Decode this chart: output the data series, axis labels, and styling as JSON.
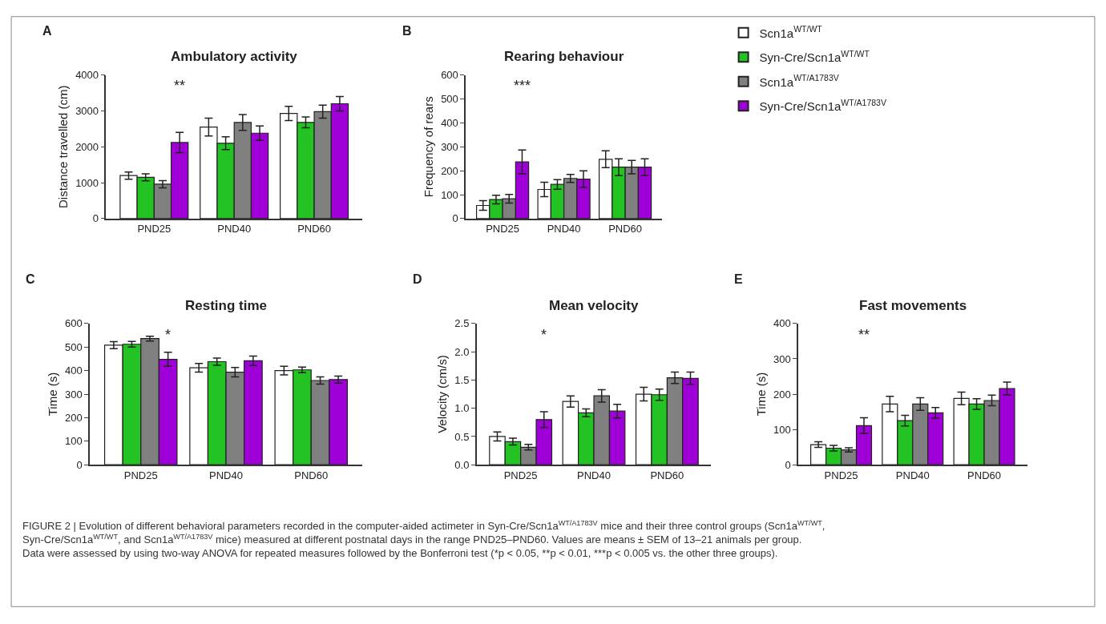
{
  "chart_data": [
    {
      "type": "bar",
      "title": "Ambulatory activity",
      "ylabel": "Distance travelled (cm)",
      "categories": [
        "PND25",
        "PND40",
        "PND60"
      ],
      "ylim": [
        0,
        4000
      ],
      "yticks": [
        0,
        1000,
        2000,
        3000,
        4000
      ],
      "legend": false,
      "series": [
        {
          "color": "#ffffff",
          "values": [
            1200,
            2550,
            2930
          ],
          "errors": [
            100,
            250,
            200
          ]
        },
        {
          "color": "#22c322",
          "values": [
            1150,
            2100,
            2680
          ],
          "errors": [
            100,
            180,
            150
          ]
        },
        {
          "color": "#808080",
          "values": [
            960,
            2680,
            2980
          ],
          "errors": [
            100,
            220,
            180
          ]
        },
        {
          "color": "#a000d8",
          "values": [
            2120,
            2380,
            3200
          ],
          "errors": [
            280,
            200,
            200
          ]
        }
      ],
      "annotations": [
        "A",
        "**"
      ]
    },
    {
      "type": "bar",
      "title": "Rearing behaviour",
      "ylabel": "Frequency of rears",
      "categories": [
        "PND25",
        "PND40",
        "PND60"
      ],
      "ylim": [
        0,
        600
      ],
      "yticks": [
        0,
        100,
        200,
        300,
        400,
        500,
        600
      ],
      "legend": "right",
      "series": [
        {
          "name": "Scn1a$^{WT/WT}$",
          "color": "#ffffff",
          "values": [
            55,
            122,
            248
          ],
          "errors": [
            20,
            30,
            35
          ]
        },
        {
          "name": "Syn-Cre/Scn1a$^{WT/WT}$",
          "color": "#22c322",
          "values": [
            80,
            143,
            215
          ],
          "errors": [
            18,
            20,
            35
          ]
        },
        {
          "name": "Scn1a$^{WT/A1783V}$",
          "color": "#808080",
          "values": [
            83,
            168,
            215
          ],
          "errors": [
            18,
            17,
            28
          ]
        },
        {
          "name": "Syn-Cre/Scn1a$^{WT/A1783V}$",
          "color": "#a000d8",
          "values": [
            237,
            165,
            215
          ],
          "errors": [
            50,
            35,
            35
          ]
        }
      ],
      "annotations": [
        "B",
        "***"
      ]
    },
    {
      "type": "bar",
      "title": "Resting time",
      "ylabel": "Time (s)",
      "categories": [
        "PND25",
        "PND40",
        "PND60"
      ],
      "ylim": [
        0,
        600
      ],
      "yticks": [
        0,
        100,
        200,
        300,
        400,
        500,
        600
      ],
      "legend": false,
      "series": [
        {
          "color": "#ffffff",
          "values": [
            508,
            412,
            400
          ],
          "errors": [
            15,
            18,
            18
          ]
        },
        {
          "color": "#22c322",
          "values": [
            512,
            438,
            403
          ],
          "errors": [
            12,
            15,
            12
          ]
        },
        {
          "color": "#808080",
          "values": [
            536,
            393,
            358
          ],
          "errors": [
            10,
            20,
            15
          ]
        },
        {
          "color": "#a000d8",
          "values": [
            448,
            442,
            362
          ],
          "errors": [
            30,
            20,
            15
          ]
        }
      ],
      "annotations": [
        "C",
        "*"
      ]
    },
    {
      "type": "bar",
      "title": "Mean velocity",
      "ylabel": "Velocity (cm/s)",
      "categories": [
        "PND25",
        "PND40",
        "PND60"
      ],
      "ylim": [
        0,
        2.5
      ],
      "yticks": [
        {
          "value": 0,
          "label": "0.0"
        },
        0.5,
        {
          "value": 1,
          "label": "1.0"
        },
        1.5,
        {
          "value": 2,
          "label": "2.0"
        },
        2.5
      ],
      "legend": false,
      "series": [
        {
          "color": "#ffffff",
          "values": [
            0.5,
            1.12,
            1.25
          ],
          "errors": [
            0.08,
            0.1,
            0.12
          ]
        },
        {
          "color": "#22c322",
          "values": [
            0.41,
            0.92,
            1.24
          ],
          "errors": [
            0.06,
            0.07,
            0.1
          ]
        },
        {
          "color": "#808080",
          "values": [
            0.31,
            1.22,
            1.54
          ],
          "errors": [
            0.05,
            0.11,
            0.1
          ]
        },
        {
          "color": "#a000d8",
          "values": [
            0.8,
            0.95,
            1.53
          ],
          "errors": [
            0.14,
            0.12,
            0.11
          ]
        }
      ],
      "annotations": [
        "D",
        "*"
      ]
    },
    {
      "type": "bar",
      "title": "Fast movements",
      "ylabel": "Time (s)",
      "categories": [
        "PND25",
        "PND40",
        "PND60"
      ],
      "ylim": [
        0,
        400
      ],
      "yticks": [
        0,
        100,
        200,
        300,
        400
      ],
      "legend": false,
      "series": [
        {
          "color": "#ffffff",
          "values": [
            57,
            172,
            188
          ],
          "errors": [
            8,
            22,
            18
          ]
        },
        {
          "color": "#22c322",
          "values": [
            47,
            125,
            172
          ],
          "errors": [
            8,
            15,
            15
          ]
        },
        {
          "color": "#808080",
          "values": [
            42,
            172,
            182
          ],
          "errors": [
            6,
            18,
            15
          ]
        },
        {
          "color": "#a000d8",
          "values": [
            111,
            147,
            216
          ],
          "errors": [
            22,
            15,
            18
          ]
        }
      ],
      "annotations": [
        "E",
        "**",
        "FIGURE 2 | Evolution of different behavioral parameters recorded in the computer-aided actimeter in Syn-Cre/Scn1a$^{WT/A1783V}$ mice and their three control groups (Scn1a$^{WT/WT}$, Syn-Cre/Scn1a$^{WT/WT}$, and Scn1a$^{WT/A1783V}$ mice) measured at different postnatal days in the range PND25–PND60. Values are means ± SEM of 13–21 animals per group.",
        "Data were assessed by using two-way ANOVA for repeated measures followed by the Bonferroni test (*p < 0.05, **p < 0.01, ***p < 0.005 vs. the other three groups)."
      ]
    }
  ]
}
